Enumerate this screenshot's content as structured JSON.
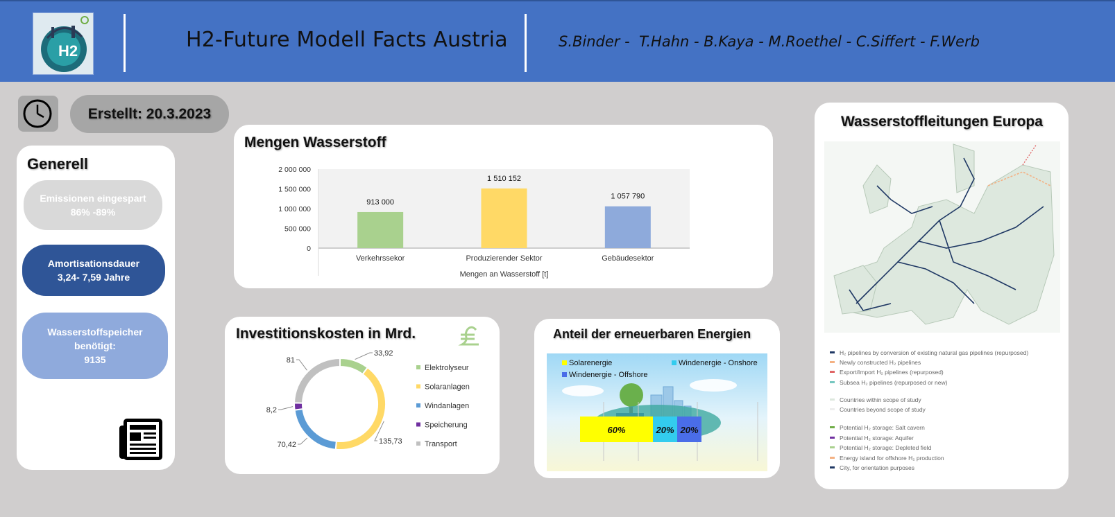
{
  "header": {
    "title": "H2-Future Modell Facts Austria",
    "authors": "S.Binder -  T.Hahn - B.Kaya - M.Roethel - C.Siffert - F.Werb",
    "logo_text": "H2"
  },
  "date_label": "Erstellt: 20.3.2023",
  "generell": {
    "title": "Generell",
    "items": [
      {
        "line1": "Emissionen eingespart",
        "line2": "86% -89%",
        "line3": ""
      },
      {
        "line1": "Amortisationsdauer",
        "line2": "3,24- 7,59 Jahre",
        "line3": ""
      },
      {
        "line1": "Wasserstoffspeicher",
        "line2": "benötigt:",
        "line3": "9135"
      }
    ]
  },
  "colors": {
    "header_bg": "#4472c4",
    "background": "#d0cece",
    "pill_grey": "#d9d9d9",
    "pill_dark_blue": "#2f5597",
    "pill_light_blue": "#8faadc",
    "bar_green": "#a9d18e",
    "bar_yellow": "#ffd966",
    "bar_blue": "#8eaadb",
    "donut_grey": "#c0c0c0",
    "donut_purple": "#7030a0",
    "donut_blue": "#5b9bd5",
    "solar_yellow": "#ffff00",
    "onshore_cyan": "#33ccee",
    "offshore_blue": "#4a6de8"
  },
  "chart_data": [
    {
      "type": "bar",
      "title": "Mengen Wasserstoff",
      "xlabel": "Mengen an Wasserstoff  [t]",
      "categories": [
        "Verkehrssekor",
        "Produzierender Sektor",
        "Gebäudesektor"
      ],
      "values": [
        913000,
        1510152,
        1057790
      ],
      "value_labels": [
        "913 000",
        "1 510 152",
        "1 057 790"
      ],
      "colors": [
        "#a9d18e",
        "#ffd966",
        "#8eaadb"
      ],
      "ylim": [
        0,
        2000000
      ],
      "yticks": [
        0,
        500000,
        1000000,
        1500000,
        2000000
      ],
      "ytick_labels": [
        "0",
        "500 000",
        "1 000 000",
        "1 500 000",
        "2 000 000"
      ]
    },
    {
      "type": "pie",
      "donut": true,
      "title": "Investitionskosten in Mrd.",
      "labels": [
        "Elektrolyseur",
        "Solaranlagen",
        "Windanlagen",
        "Speicherung",
        "Transport"
      ],
      "values": [
        33.92,
        135.73,
        70.42,
        8.2,
        81
      ],
      "value_labels": [
        "33,92",
        "135,73",
        "70,42",
        "8,2",
        "81"
      ],
      "colors": [
        "#a9d18e",
        "#ffd966",
        "#5b9bd5",
        "#7030a0",
        "#c0c0c0"
      ],
      "legend": "right"
    },
    {
      "type": "bar",
      "stacked": true,
      "orientation": "horizontal",
      "title": "Anteil der erneuerbaren Energien",
      "series": [
        {
          "name": "Solarenergie",
          "values": [
            60
          ],
          "label": "60%",
          "color": "#ffff00"
        },
        {
          "name": "Windenergie - Onshore",
          "values": [
            20
          ],
          "label": "20%",
          "color": "#33ccee"
        },
        {
          "name": "Windenergie - Offshore",
          "values": [
            20
          ],
          "label": "20%",
          "color": "#4a6de8"
        }
      ],
      "legend": "top"
    }
  ],
  "map": {
    "title": "Wasserstoffleitungen Europa",
    "legend": [
      {
        "label": "H₂ pipelines by conversion of existing natural gas pipelines (repurposed)",
        "color": "#1f3864"
      },
      {
        "label": "Newly constructed H₂ pipelines",
        "color": "#f4b183"
      },
      {
        "label": "Export/Import H₂ pipelines (repurposed)",
        "color": "#e06666"
      },
      {
        "label": "Subsea H₂ pipelines (repurposed or new)",
        "color": "#76c7c0"
      },
      {
        "label": "Countries within scope of study",
        "color": "#dde8de"
      },
      {
        "label": "Countries beyond scope of study",
        "color": "#eeeeee"
      },
      {
        "label": "Potential H₂ storage: Salt cavern",
        "color": "#70ad47"
      },
      {
        "label": "Potential H₂ storage: Aquifer",
        "color": "#7030a0"
      },
      {
        "label": "Potential H₂ storage: Depleted field",
        "color": "#a9d18e"
      },
      {
        "label": "Energy island for offshore H₂ production",
        "color": "#f4b183"
      },
      {
        "label": "City, for orientation purposes",
        "color": "#1f3864"
      }
    ]
  }
}
